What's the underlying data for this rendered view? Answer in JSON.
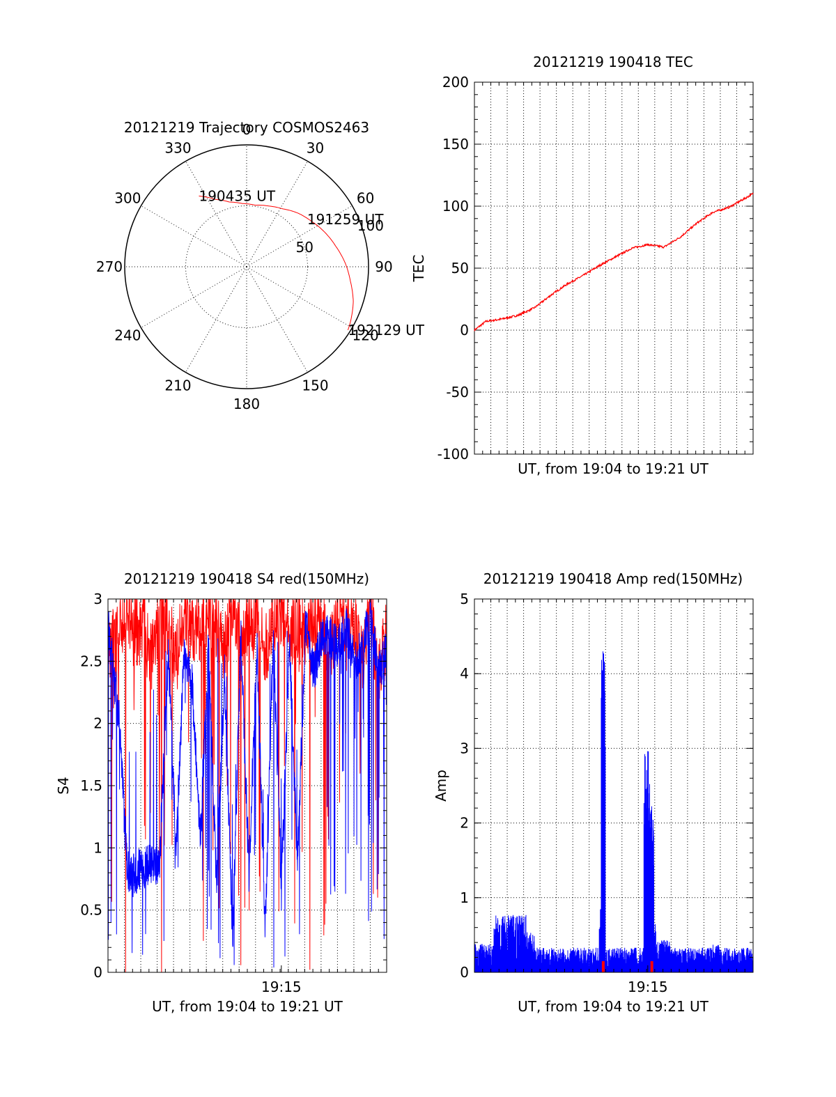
{
  "chart_data": [
    {
      "type": "polar",
      "title": "20121219 Trajectory COSMOS2463",
      "angle_labels": [
        "0",
        "30",
        "60",
        "90",
        "120",
        "150",
        "180",
        "210",
        "240",
        "270",
        "300",
        "330"
      ],
      "radial_labels": [
        "50",
        "100"
      ],
      "rlim": [
        0,
        100
      ],
      "grid": true,
      "series": [
        {
          "color": "#ff0000",
          "points": [
            {
              "az": 326,
              "r": 70
            },
            {
              "az": 335,
              "r": 61
            },
            {
              "az": 345,
              "r": 55
            },
            {
              "az": 356,
              "r": 52
            },
            {
              "az": 8,
              "r": 51
            },
            {
              "az": 20,
              "r": 53
            },
            {
              "az": 32,
              "r": 56
            },
            {
              "az": 44,
              "r": 61
            },
            {
              "az": 55,
              "r": 65
            },
            {
              "az": 66,
              "r": 70
            },
            {
              "az": 77,
              "r": 75
            },
            {
              "az": 88,
              "r": 81
            },
            {
              "az": 98,
              "r": 86
            },
            {
              "az": 108,
              "r": 92
            },
            {
              "az": 117,
              "r": 96
            },
            {
              "az": 122,
              "r": 98
            }
          ]
        }
      ],
      "annotations": [
        {
          "text": "190435 UT",
          "az": 326,
          "r": 70
        },
        {
          "text": "191259 UT",
          "az": 52,
          "r": 63
        },
        {
          "text": "192129 UT",
          "az": 122,
          "r": 98
        }
      ]
    },
    {
      "type": "line",
      "title": "20121219 190418 TEC",
      "xlabel": "UT, from 19:04 to 19:21 UT",
      "ylabel": "TEC",
      "xlim": [
        "19:04:18",
        "19:21:30"
      ],
      "ylim": [
        -100,
        200
      ],
      "yticks": [
        "-100",
        "-50",
        "0",
        "50",
        "100",
        "150",
        "200"
      ],
      "grid": true,
      "series": [
        {
          "color": "#ff0000",
          "x": [
            "19:04:18",
            "19:05:00",
            "19:06:00",
            "19:07:00",
            "19:08:00",
            "19:09:00",
            "19:10:00",
            "19:11:00",
            "19:12:00",
            "19:13:00",
            "19:14:00",
            "19:15:00",
            "19:16:00",
            "19:17:00",
            "19:18:00",
            "19:19:00",
            "19:20:00",
            "19:21:30"
          ],
          "values": [
            0,
            7,
            9,
            12,
            18,
            28,
            37,
            44,
            52,
            59,
            66,
            69,
            67,
            75,
            86,
            95,
            99,
            110
          ]
        }
      ]
    },
    {
      "type": "line",
      "title": "20121219 190418 S4 red(150MHz)",
      "xlabel": "UT, from 19:04 to 19:21 UT",
      "ylabel": "S4",
      "xlim": [
        "19:04:18",
        "19:21:30"
      ],
      "ylim": [
        0,
        3
      ],
      "yticks": [
        "0",
        "0.5",
        "1",
        "1.5",
        "2",
        "2.5",
        "3"
      ],
      "xticks": [
        "19:15"
      ],
      "grid": true,
      "series": [
        {
          "color": "#0000ff",
          "x": [
            "19:04:18",
            "19:05:00",
            "19:05:30",
            "19:06:00",
            "19:06:30",
            "19:07:00",
            "19:07:30",
            "19:08:00",
            "19:08:30",
            "19:09:00",
            "19:09:30",
            "19:10:00",
            "19:10:30",
            "19:11:00",
            "19:11:30",
            "19:12:00",
            "19:12:30",
            "19:13:00",
            "19:13:30",
            "19:14:00",
            "19:14:30",
            "19:15:00",
            "19:15:30",
            "19:16:00",
            "19:16:30",
            "19:17:00",
            "19:17:30",
            "19:18:00",
            "19:18:30",
            "19:19:00",
            "19:19:30",
            "19:20:00",
            "19:20:30",
            "19:21:00",
            "19:21:30"
          ],
          "values": [
            2.8,
            2.0,
            0.8,
            0.8,
            0.85,
            0.85,
            0.9,
            2.6,
            1.0,
            2.6,
            2.3,
            1.1,
            2.6,
            0.7,
            2.4,
            0.25,
            2.7,
            0.8,
            2.6,
            0.3,
            2.7,
            0.7,
            2.6,
            0.9,
            2.8,
            2.4,
            2.7,
            2.7,
            2.6,
            2.8,
            2.5,
            2.6,
            2.9,
            2.4,
            2.6
          ]
        },
        {
          "color": "#ff0000",
          "x": [
            "19:04:18",
            "19:05:00",
            "19:05:30",
            "19:06:00",
            "19:06:30",
            "19:07:00",
            "19:07:30",
            "19:08:00",
            "19:08:30",
            "19:09:00",
            "19:09:30",
            "19:10:00",
            "19:10:30",
            "19:11:00",
            "19:11:30",
            "19:12:00",
            "19:12:30",
            "19:13:00",
            "19:13:30",
            "19:14:00",
            "19:14:30",
            "19:15:00",
            "19:15:30",
            "19:16:00",
            "19:16:30",
            "19:17:00",
            "19:17:30",
            "19:18:00",
            "19:18:30",
            "19:19:00",
            "19:19:30",
            "19:20:00",
            "19:20:30",
            "19:21:00",
            "19:21:30"
          ],
          "values": [
            2.6,
            2.7,
            2.9,
            2.7,
            2.8,
            2.5,
            2.9,
            2.8,
            2.5,
            2.9,
            2.8,
            2.7,
            2.9,
            2.8,
            2.6,
            2.9,
            2.7,
            2.8,
            2.9,
            2.6,
            2.8,
            2.9,
            2.7,
            2.8,
            2.7,
            2.9,
            2.8,
            2.6,
            2.9,
            2.7,
            2.8,
            2.5,
            2.9,
            2.4,
            2.7
          ]
        }
      ]
    },
    {
      "type": "line",
      "title": "20121219 190418 Amp red(150MHz)",
      "xlabel": "UT, from 19:04 to 19:21 UT",
      "ylabel": "Amp",
      "xlim": [
        "19:04:18",
        "19:21:30"
      ],
      "ylim": [
        0,
        5
      ],
      "yticks": [
        "0",
        "1",
        "2",
        "3",
        "4",
        "5"
      ],
      "xticks": [
        "19:15"
      ],
      "grid": true,
      "series": [
        {
          "color": "#0000ff",
          "x": [
            "19:04:18",
            "19:05:00",
            "19:05:30",
            "19:06:00",
            "19:06:30",
            "19:07:00",
            "19:07:30",
            "19:08:00",
            "19:08:30",
            "19:09:00",
            "19:09:30",
            "19:10:00",
            "19:10:30",
            "19:11:00",
            "19:11:30",
            "19:12:00",
            "19:12:15",
            "19:12:30",
            "19:13:00",
            "19:13:30",
            "19:14:00",
            "19:14:30",
            "19:15:00",
            "19:15:15",
            "19:15:30",
            "19:16:00",
            "19:16:30",
            "19:17:00",
            "19:17:30",
            "19:18:00",
            "19:18:30",
            "19:19:00",
            "19:19:30",
            "19:20:00",
            "19:20:30",
            "19:21:00",
            "19:21:30"
          ],
          "values": [
            0.45,
            0.35,
            0.7,
            0.7,
            0.9,
            0.7,
            0.75,
            0.5,
            0.3,
            0.4,
            0.3,
            0.35,
            0.3,
            0.4,
            0.3,
            0.8,
            4.4,
            0.3,
            0.3,
            0.3,
            0.6,
            0.3,
            3.0,
            2.5,
            0.6,
            0.4,
            0.4,
            0.3,
            0.35,
            0.3,
            0.3,
            0.35,
            0.4,
            0.3,
            0.35,
            0.3,
            0.35
          ]
        }
      ],
      "markers": {
        "color": "#ff0000",
        "x": [
          "19:12:15",
          "19:15:15"
        ]
      }
    }
  ]
}
